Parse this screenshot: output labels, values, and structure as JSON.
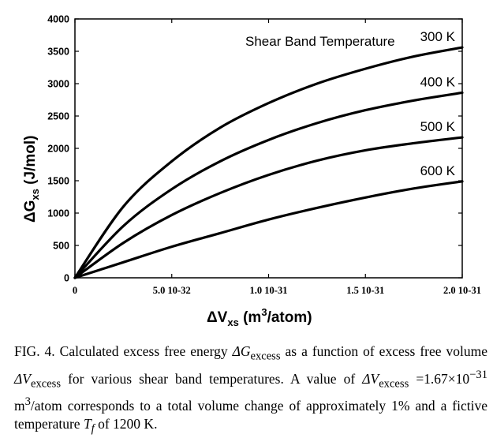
{
  "chart_data": {
    "type": "line",
    "title": "",
    "xlabel": "ΔV",
    "xlabel_sub": "xs",
    "xlabel_unit": "(m",
    "xlabel_unit_sup": "3",
    "xlabel_unit_end": "/atom)",
    "ylabel": "ΔG",
    "ylabel_sub": "xs",
    "ylabel_unit": "(J/mol)",
    "xlim": [
      0,
      2e-31
    ],
    "ylim": [
      0,
      4000
    ],
    "yticks": [
      0,
      500,
      1000,
      1500,
      2000,
      2500,
      3000,
      3500,
      4000
    ],
    "xticks": [
      {
        "value": 0,
        "label": "0"
      },
      {
        "value": 5e-32,
        "label": "5.0 10-32"
      },
      {
        "value": 1e-31,
        "label": "1.0 10-31"
      },
      {
        "value": 1.5e-31,
        "label": "1.5 10-31"
      },
      {
        "value": 2e-31,
        "label": "2.0 10-31"
      }
    ],
    "annotation_header": "Shear Band Temperature",
    "series": [
      {
        "name": "300 K",
        "x": [
          0,
          2.5e-32,
          5e-32,
          7.5e-32,
          1e-31,
          1.25e-31,
          1.5e-31,
          1.75e-31,
          2e-31
        ],
        "values": [
          0,
          1100,
          1800,
          2320,
          2700,
          3000,
          3230,
          3420,
          3560
        ]
      },
      {
        "name": "400 K",
        "x": [
          0,
          2.5e-32,
          5e-32,
          7.5e-32,
          1e-31,
          1.25e-31,
          1.5e-31,
          1.75e-31,
          2e-31
        ],
        "values": [
          0,
          800,
          1370,
          1800,
          2130,
          2390,
          2590,
          2740,
          2860
        ]
      },
      {
        "name": "500 K",
        "x": [
          0,
          2.5e-32,
          5e-32,
          7.5e-32,
          1e-31,
          1.25e-31,
          1.5e-31,
          1.75e-31,
          2e-31
        ],
        "values": [
          0,
          540,
          970,
          1310,
          1590,
          1810,
          1970,
          2080,
          2170
        ]
      },
      {
        "name": "600 K",
        "x": [
          0,
          2.5e-32,
          5e-32,
          7.5e-32,
          1e-31,
          1.25e-31,
          1.5e-31,
          1.75e-31,
          2e-31
        ],
        "values": [
          0,
          240,
          480,
          690,
          900,
          1080,
          1240,
          1380,
          1490
        ]
      }
    ],
    "grid": false,
    "legend": "labels at right end of each curve"
  },
  "caption": {
    "prefix": "FIG. 4.  Calculated excess free energy ",
    "dg": "ΔG",
    "dg_sub": "excess",
    "mid1": " as a function of excess free volume ",
    "dv": "ΔV",
    "dv_sub": "excess",
    "mid2": " for various shear band temperatures. A value of ",
    "dv2": "ΔV",
    "dv2_sub": "excess",
    "value": "=1.67×10",
    "value_exp": "−31",
    "unit": " m",
    "unit_sup": "3",
    "unit_end": "/atom",
    "mid3": " corresponds to a total volume change of approximately 1% and a fictive temperature ",
    "tf": "T",
    "tf_sub": "f",
    "suffix": " of 1200 K."
  }
}
